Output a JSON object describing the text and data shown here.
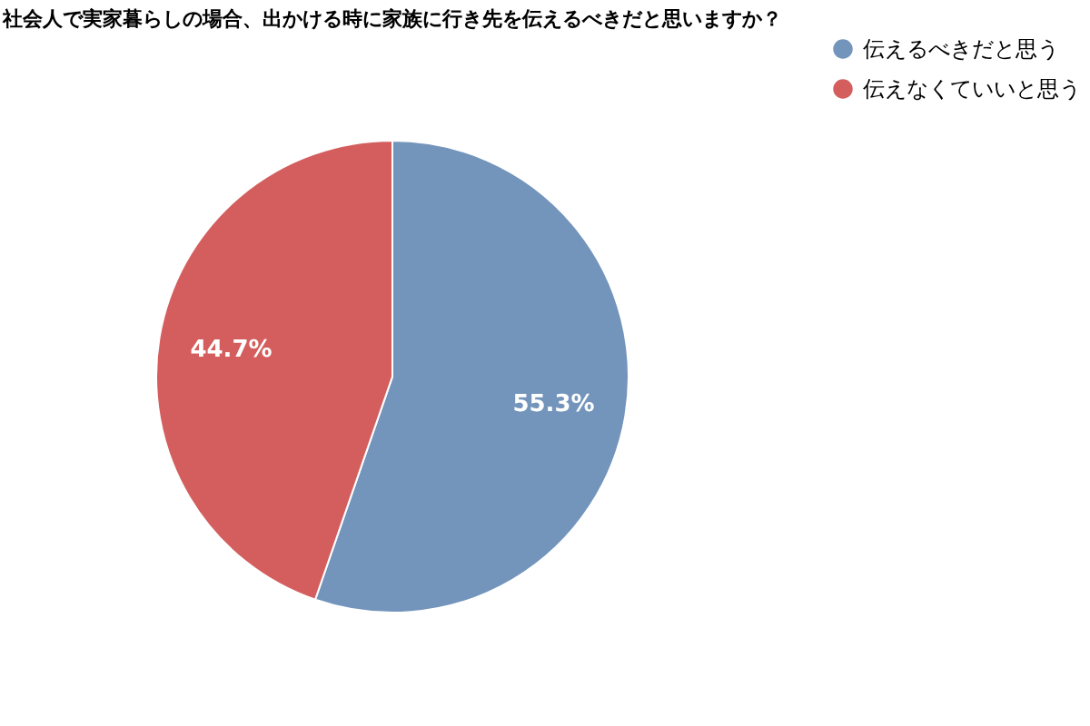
{
  "chart_data": {
    "type": "pie",
    "title": "社会人で実家暮らしの場合、出かける時に家族に行き先を伝えるべきだと思いますか？",
    "categories": [
      "伝えるべきだと思う",
      "伝えなくていいと思う"
    ],
    "values": [
      55.3,
      44.7
    ],
    "colors": [
      "#7394bb",
      "#d45e5e"
    ],
    "value_labels": [
      "55.3%",
      "44.7%"
    ],
    "legend": "right"
  }
}
